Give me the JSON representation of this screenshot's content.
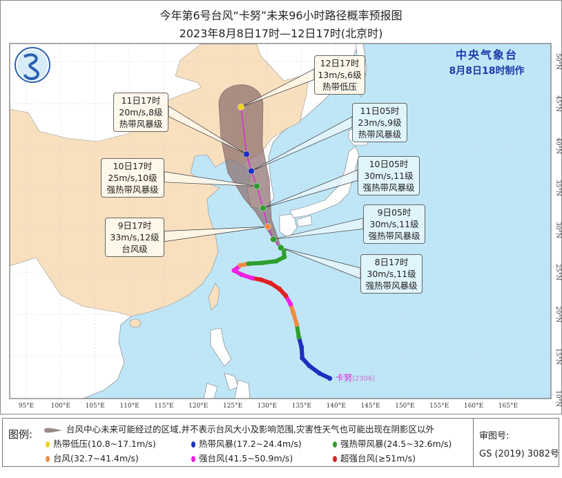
{
  "header": {
    "title": "今年第6号台风“卡努”未来96小时路径概率预报图",
    "subtitle": "2023年8月8日17时—12日17时(北京时)"
  },
  "agency": {
    "name": "中央气象台",
    "issued": "8月8日18时制作"
  },
  "storm_label": {
    "name": "卡努",
    "code": "(2306)"
  },
  "axes": {
    "lon_ticks": [
      "95°E",
      "100°E",
      "105°E",
      "110°E",
      "115°E",
      "120°E",
      "125°E",
      "130°E",
      "135°E",
      "140°E",
      "145°E",
      "150°E",
      "155°E",
      "160°E",
      "165°E"
    ],
    "lon_values": [
      95,
      100,
      105,
      110,
      115,
      120,
      125,
      130,
      135,
      140,
      145,
      150,
      155,
      160,
      165
    ],
    "lat_ticks": [
      "10°N",
      "15°N",
      "20°N",
      "25°N",
      "30°N",
      "35°N",
      "40°N",
      "45°N",
      "50°N"
    ],
    "lat_values": [
      10,
      15,
      20,
      25,
      30,
      35,
      40,
      45,
      50
    ]
  },
  "colors": {
    "tropical_depression": "#f2d21a",
    "tropical_storm": "#1f2fbf",
    "severe_tropical_storm": "#2f9e2f",
    "typhoon": "#f08c40",
    "severe_typhoon": "#f020e0",
    "super_typhoon": "#e02020",
    "sea": "#bfe6f7",
    "china_land": "#f8e0bf",
    "cone": "#8c6e6e",
    "forecast_line": "#e020e0"
  },
  "forecast_points": [
    {
      "time": "8日17时",
      "wind": "30m/s,11级",
      "category": "强热带风暴级",
      "cat": "severe_tropical_storm",
      "lon": 132.0,
      "lat": 27.9
    },
    {
      "time": "9日05时",
      "wind": "30m/s,11级",
      "category": "强热带风暴级",
      "cat": "severe_tropical_storm",
      "lon": 130.9,
      "lat": 28.9
    },
    {
      "time": "9日17时",
      "wind": "33m/s,12级",
      "category": "台风级",
      "cat": "typhoon",
      "lon": 130.1,
      "lat": 30.4
    },
    {
      "time": "10日05时",
      "wind": "30m/s,11级",
      "category": "强热带风暴级",
      "cat": "severe_tropical_storm",
      "lon": 129.4,
      "lat": 32.6
    },
    {
      "time": "10日17时",
      "wind": "25m/s,10级",
      "category": "强热带风暴级",
      "cat": "severe_tropical_storm",
      "lon": 128.5,
      "lat": 35.2
    },
    {
      "time": "11日05时",
      "wind": "23m/s,9级",
      "category": "热带风暴级",
      "cat": "tropical_storm",
      "lon": 127.7,
      "lat": 37.0
    },
    {
      "time": "11日17时",
      "wind": "20m/s,8级",
      "category": "热带风暴级",
      "cat": "tropical_storm",
      "lon": 127.0,
      "lat": 39.0
    },
    {
      "time": "12日17时",
      "wind": "13m/s,6级",
      "category": "热带低压",
      "cat": "tropical_depression",
      "lon": 126.2,
      "lat": 44.6
    }
  ],
  "past_track": [
    {
      "lon": 139.1,
      "lat": 12.4,
      "cat": "tropical_storm"
    },
    {
      "lon": 137.6,
      "lat": 13.0,
      "cat": "tropical_storm"
    },
    {
      "lon": 136.1,
      "lat": 13.9,
      "cat": "tropical_storm"
    },
    {
      "lon": 135.1,
      "lat": 14.8,
      "cat": "tropical_storm"
    },
    {
      "lon": 135.0,
      "lat": 16.1,
      "cat": "tropical_storm"
    },
    {
      "lon": 134.6,
      "lat": 17.3,
      "cat": "severe_tropical_storm"
    },
    {
      "lon": 134.3,
      "lat": 18.8,
      "cat": "typhoon"
    },
    {
      "lon": 133.8,
      "lat": 20.2,
      "cat": "typhoon"
    },
    {
      "lon": 133.4,
      "lat": 21.2,
      "cat": "severe_typhoon"
    },
    {
      "lon": 132.7,
      "lat": 22.2,
      "cat": "super_typhoon"
    },
    {
      "lon": 131.8,
      "lat": 23.0,
      "cat": "super_typhoon"
    },
    {
      "lon": 130.5,
      "lat": 23.7,
      "cat": "super_typhoon"
    },
    {
      "lon": 129.1,
      "lat": 24.1,
      "cat": "super_typhoon"
    },
    {
      "lon": 127.8,
      "lat": 24.3,
      "cat": "severe_typhoon"
    },
    {
      "lon": 126.3,
      "lat": 24.7,
      "cat": "severe_typhoon"
    },
    {
      "lon": 125.2,
      "lat": 25.2,
      "cat": "severe_typhoon"
    },
    {
      "lon": 126.1,
      "lat": 25.8,
      "cat": "typhoon"
    },
    {
      "lon": 127.3,
      "lat": 26.0,
      "cat": "severe_tropical_storm"
    },
    {
      "lon": 129.3,
      "lat": 26.1,
      "cat": "severe_tropical_storm"
    },
    {
      "lon": 131.3,
      "lat": 26.3,
      "cat": "severe_tropical_storm"
    },
    {
      "lon": 132.5,
      "lat": 26.8,
      "cat": "severe_tropical_storm"
    },
    {
      "lon": 132.4,
      "lat": 27.6,
      "cat": "severe_tropical_storm"
    },
    {
      "lon": 132.0,
      "lat": 27.9,
      "cat": "severe_tropical_storm"
    }
  ],
  "legend": {
    "heading": "图例:",
    "cone_text": "台风中心未来可能经过的区域,并不表示台风大小及影响范围,灾害性天气也可能出现在阴影区以外",
    "items": [
      {
        "label": "热带低压(10.8~17.1m/s)",
        "cat": "tropical_depression"
      },
      {
        "label": "热带风暴(17.2~24.4m/s)",
        "cat": "tropical_storm"
      },
      {
        "label": "强热带风暴(24.5~32.6m/s)",
        "cat": "severe_tropical_storm"
      },
      {
        "label": "台风(32.7~41.4m/s)",
        "cat": "typhoon"
      },
      {
        "label": "强台风(41.5~50.9m/s)",
        "cat": "severe_typhoon"
      },
      {
        "label": "超强台风(≥51m/s)",
        "cat": "super_typhoon"
      }
    ],
    "approval_label": "审图号:",
    "approval_number": "GS (2019) 3082号"
  }
}
